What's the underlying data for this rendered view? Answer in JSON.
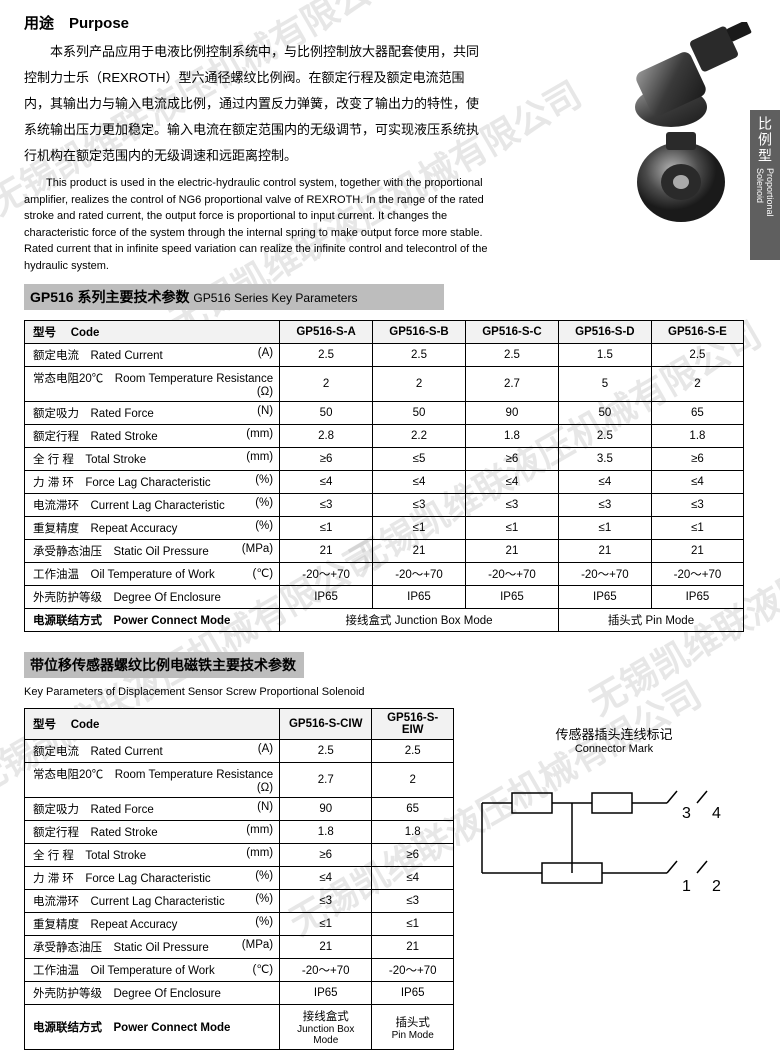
{
  "purpose": {
    "title": "用途　Purpose",
    "cn": "本系列产品应用于电液比例控制系统中，与比例控制放大器配套使用，共同控制力士乐（REXROTH）型六通径螺纹比例阀。在额定行程及额定电流范围内，其输出力与输入电流成比例，通过内置反力弹簧，改变了输出力的特性，使系统输出压力更加稳定。输入电流在额定范围内的无级调节，可实现液压系统执行机构在额定范围内的无级调速和远距离控制。",
    "en": "This product is used in the electric-hydraulic control system, together with the proportional amplifier, realizes the control of NG6 proportional valve of REXROTH. In the range of the rated stroke and rated current, the output force is proportional to input current. It changes the characteristic force of the system through the internal spring to make output force more stable. Rated current that in infinite speed variation can realize the infinite control and telecontrol of the hydraulic system."
  },
  "side_tab": {
    "cn": "比例型",
    "en": "Proportional Solenoid"
  },
  "section1": {
    "title": "GP516 系列主要技术参数",
    "sub": "GP516 Series Key Parameters"
  },
  "table1": {
    "code_label_cn": "型号",
    "code_label_en": "Code",
    "cols": [
      "GP516-S-A",
      "GP516-S-B",
      "GP516-S-C",
      "GP516-S-D",
      "GP516-S-E"
    ],
    "rows": [
      {
        "cn": "额定电流",
        "en": "Rated Current",
        "unit": "(A)",
        "v": [
          "2.5",
          "2.5",
          "2.5",
          "1.5",
          "2.5"
        ]
      },
      {
        "cn": "常态电阻20℃",
        "en": "Room Temperature Resistance",
        "unit": "(Ω)",
        "v": [
          "2",
          "2",
          "2.7",
          "5",
          "2"
        ]
      },
      {
        "cn": "额定吸力",
        "en": "Rated Force",
        "unit": "(N)",
        "v": [
          "50",
          "50",
          "90",
          "50",
          "65"
        ]
      },
      {
        "cn": "额定行程",
        "en": "Rated Stroke",
        "unit": "(mm)",
        "v": [
          "2.8",
          "2.2",
          "1.8",
          "2.5",
          "1.8"
        ]
      },
      {
        "cn": "全 行 程",
        "en": "Total Stroke",
        "unit": "(mm)",
        "v": [
          "≥6",
          "≤5",
          "≥6",
          "3.5",
          "≥6"
        ]
      },
      {
        "cn": "力 滞 环",
        "en": "Force Lag Characteristic",
        "unit": "(%)",
        "v": [
          "≤4",
          "≤4",
          "≤4",
          "≤4",
          "≤4"
        ]
      },
      {
        "cn": "电流滞环",
        "en": "Current Lag Characteristic",
        "unit": "(%)",
        "v": [
          "≤3",
          "≤3",
          "≤3",
          "≤3",
          "≤3"
        ]
      },
      {
        "cn": "重复精度",
        "en": "Repeat Accuracy",
        "unit": "(%)",
        "v": [
          "≤1",
          "≤1",
          "≤1",
          "≤1",
          "≤1"
        ]
      },
      {
        "cn": "承受静态油压",
        "en": "Static Oil Pressure",
        "unit": "(MPa)",
        "v": [
          "21",
          "21",
          "21",
          "21",
          "21"
        ]
      },
      {
        "cn": "工作油温",
        "en": "Oil Temperature of Work",
        "unit": "(℃)",
        "v": [
          "-20～+70",
          "-20～+70",
          "-20～+70",
          "-20～+70",
          "-20～+70"
        ]
      },
      {
        "cn": "外壳防护等级",
        "en": "Degree Of Enclosure",
        "unit": "",
        "v": [
          "IP65",
          "IP65",
          "IP65",
          "IP65",
          "IP65"
        ]
      }
    ],
    "power_row": {
      "cn": "电源联结方式",
      "en": "Power Connect Mode",
      "junction": "接线盒式 Junction Box Mode",
      "pin": "插头式 Pin Mode"
    }
  },
  "section2": {
    "title": "带位移传感器螺纹比例电磁铁主要技术参数",
    "sub": "Key Parameters of Displacement Sensor Screw Proportional Solenoid"
  },
  "table2": {
    "code_label_cn": "型号",
    "code_label_en": "Code",
    "cols": [
      "GP516-S-CIW",
      "GP516-S-EIW"
    ],
    "rows": [
      {
        "cn": "额定电流",
        "en": "Rated Current",
        "unit": "(A)",
        "v": [
          "2.5",
          "2.5"
        ]
      },
      {
        "cn": "常态电阻20℃",
        "en": "Room Temperature Resistance",
        "unit": "(Ω)",
        "v": [
          "2.7",
          "2"
        ]
      },
      {
        "cn": "额定吸力",
        "en": "Rated Force",
        "unit": "(N)",
        "v": [
          "90",
          "65"
        ]
      },
      {
        "cn": "额定行程",
        "en": "Rated Stroke",
        "unit": "(mm)",
        "v": [
          "1.8",
          "1.8"
        ]
      },
      {
        "cn": "全 行 程",
        "en": "Total Stroke",
        "unit": "(mm)",
        "v": [
          "≥6",
          "≥6"
        ]
      },
      {
        "cn": "力 滞 环",
        "en": "Force Lag Characteristic",
        "unit": "(%)",
        "v": [
          "≤4",
          "≤4"
        ]
      },
      {
        "cn": "电流滞环",
        "en": "Current Lag Characteristic",
        "unit": "(%)",
        "v": [
          "≤3",
          "≤3"
        ]
      },
      {
        "cn": "重复精度",
        "en": "Repeat Accuracy",
        "unit": "(%)",
        "v": [
          "≤1",
          "≤1"
        ]
      },
      {
        "cn": "承受静态油压",
        "en": "Static Oil Pressure",
        "unit": "(MPa)",
        "v": [
          "21",
          "21"
        ]
      },
      {
        "cn": "工作油温",
        "en": "Oil Temperature of Work",
        "unit": "(℃)",
        "v": [
          "-20～+70",
          "-20～+70"
        ]
      },
      {
        "cn": "外壳防护等级",
        "en": "Degree Of Enclosure",
        "unit": "",
        "v": [
          "IP65",
          "IP65"
        ]
      }
    ],
    "power_row": {
      "cn": "电源联结方式",
      "en": "Power Connect Mode",
      "junction_cn": "接线盒式",
      "junction_en": "Junction Box Mode",
      "pin_cn": "插头式",
      "pin_en": "Pin Mode"
    }
  },
  "connector": {
    "title_cn": "传感器插头连线标记",
    "title_en": "Connector Mark",
    "pins": {
      "p1": "1",
      "p2": "2",
      "p3": "3",
      "p4": "4"
    }
  },
  "watermark": "无锡凯维联液压机械有限公司",
  "colors": {
    "bar_bg": "#bdbdbd",
    "border": "#000000",
    "side_tab": "#5f5f5f",
    "text": "#000000",
    "bg": "#ffffff",
    "watermark": "rgba(160,160,160,0.25)",
    "solenoid": "#3a3a3a",
    "solenoid_light": "#8c8c8c"
  }
}
